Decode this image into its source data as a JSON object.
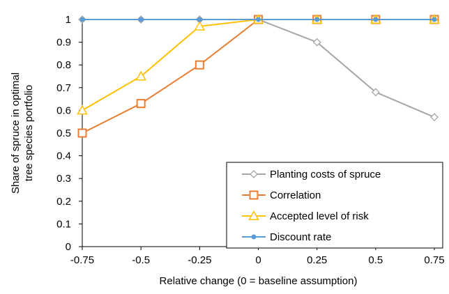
{
  "chart_data": {
    "type": "line",
    "x": [
      -0.75,
      -0.5,
      -0.25,
      0,
      0.25,
      0.5,
      0.75
    ],
    "x_tick_labels": [
      "-0.75",
      "-0.5",
      "-0.25",
      "0",
      "0.25",
      "0.5",
      "0.75"
    ],
    "y_tick_labels": [
      "0",
      "0.1",
      "0.2",
      "0.3",
      "0.4",
      "0.5",
      "0.6",
      "0.7",
      "0.8",
      "0.9",
      "1"
    ],
    "xlabel": "Relative change (0 = baseline assumption)",
    "ylabel_lines": [
      "Share of spruce in optimal",
      "tree species portfolio"
    ],
    "ylim": [
      0,
      1
    ],
    "xlim": [
      -0.75,
      0.75
    ],
    "grid": false,
    "legend_position": "bottom-right",
    "series": [
      {
        "name": "Planting costs of spruce",
        "color": "#a5a5a5",
        "marker": "diamond-open",
        "values": [
          1,
          1,
          1,
          1,
          0.9,
          0.68,
          0.57
        ]
      },
      {
        "name": "Correlation",
        "color": "#ed7d31",
        "marker": "square-open",
        "values": [
          0.5,
          0.63,
          0.8,
          1,
          1,
          1,
          1
        ]
      },
      {
        "name": "Accepted level of risk",
        "color": "#ffc000",
        "marker": "triangle-open",
        "values": [
          0.6,
          0.75,
          0.97,
          1,
          1,
          1,
          1
        ]
      },
      {
        "name": "Discount rate",
        "color": "#5b9bd5",
        "marker": "dot",
        "values": [
          1,
          1,
          1,
          1,
          1,
          1,
          1
        ]
      }
    ]
  }
}
